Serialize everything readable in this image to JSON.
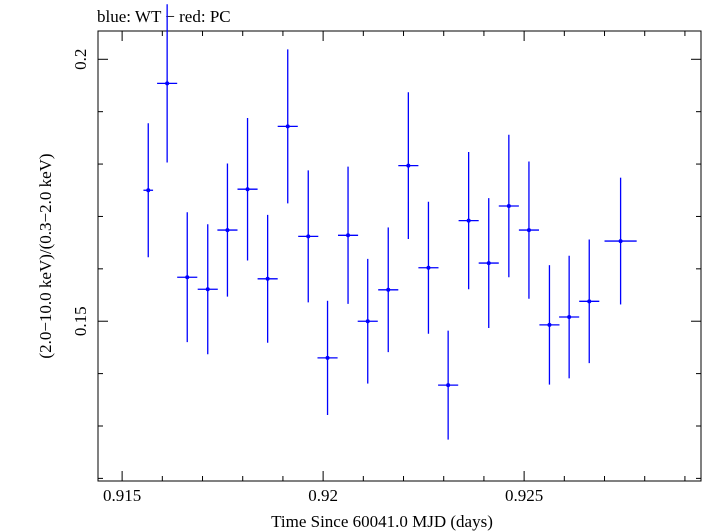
{
  "chart_data": {
    "type": "scatter",
    "title": "blue: WT − red: PC",
    "xlabel": "Time Since 60041.0 MJD (days)",
    "ylabel": "(2.0−10.0 keV)/(0.3−2.0 keV)",
    "xlim": [
      0.9144,
      0.9294
    ],
    "ylim": [
      0.1195,
      0.2054
    ],
    "x_ticks": [
      0.915,
      0.92,
      0.925
    ],
    "x_tick_labels": [
      "0.915",
      "0.92",
      "0.925"
    ],
    "y_ticks": [
      0.15,
      0.2
    ],
    "y_tick_labels": [
      "0.15",
      "0.2"
    ],
    "grid": false,
    "series": [
      {
        "color": "#0000ff",
        "x": [
          0.91565,
          0.91612,
          0.91662,
          0.91713,
          0.91762,
          0.91812,
          0.91862,
          0.91912,
          0.91963,
          0.92011,
          0.92062,
          0.92111,
          0.92162,
          0.92212,
          0.92262,
          0.92311,
          0.92362,
          0.92412,
          0.92462,
          0.92512,
          0.92563,
          0.92612,
          0.92662,
          0.9274
        ],
        "y": [
          0.175,
          0.1954,
          0.1584,
          0.1561,
          0.1674,
          0.1752,
          0.1581,
          0.1872,
          0.1662,
          0.143,
          0.1664,
          0.15,
          0.156,
          0.1797,
          0.1602,
          0.1378,
          0.1692,
          0.1611,
          0.172,
          0.1674,
          0.1493,
          0.1508,
          0.1538,
          0.1653
        ],
        "xerr": [
          0.00012,
          0.00025,
          0.00025,
          0.00025,
          0.00025,
          0.00025,
          0.00025,
          0.00025,
          0.00025,
          0.00025,
          0.00025,
          0.00025,
          0.00025,
          0.00025,
          0.00025,
          0.00025,
          0.00025,
          0.00025,
          0.00025,
          0.00025,
          0.00025,
          0.00025,
          0.00025,
          0.0004
        ],
        "yerr": [
          0.0128,
          0.0151,
          0.0124,
          0.0124,
          0.0127,
          0.0136,
          0.0122,
          0.0147,
          0.0126,
          0.0109,
          0.0131,
          0.0119,
          0.0119,
          0.014,
          0.0126,
          0.0104,
          0.0131,
          0.0124,
          0.0136,
          0.0131,
          0.0114,
          0.0117,
          0.0118,
          0.0121
        ]
      }
    ]
  }
}
